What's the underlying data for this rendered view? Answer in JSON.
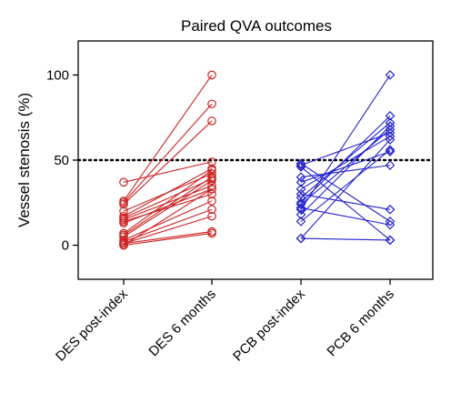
{
  "chart_data": {
    "type": "line",
    "title": "Paired QVA outcomes",
    "ylabel": "Vessel stenosis (%)",
    "xlabel": "",
    "ylim": [
      -20,
      120
    ],
    "yticks": [
      0,
      50,
      100
    ],
    "reference_line": {
      "y": 50,
      "style": "dotted"
    },
    "categories": [
      "DES post-index",
      "DES 6 months",
      "PCB post-index",
      "PCB 6 months"
    ],
    "groups": [
      {
        "name": "DES",
        "color": "#cc2222",
        "marker": "circle",
        "from_category": 0,
        "to_category": 1,
        "pairs": [
          [
            37,
            49
          ],
          [
            26,
            100
          ],
          [
            25,
            83
          ],
          [
            24,
            73
          ],
          [
            20,
            42
          ],
          [
            17,
            45
          ],
          [
            16,
            39
          ],
          [
            15,
            35
          ],
          [
            14,
            30
          ],
          [
            13,
            33
          ],
          [
            7,
            44
          ],
          [
            6,
            40
          ],
          [
            5,
            38
          ],
          [
            3,
            26
          ],
          [
            2,
            21
          ],
          [
            1,
            8
          ],
          [
            1,
            17
          ],
          [
            0,
            7
          ],
          [
            0,
            33
          ]
        ]
      },
      {
        "name": "PCB",
        "color": "#2222cc",
        "marker": "diamond",
        "from_category": 2,
        "to_category": 3,
        "pairs": [
          [
            48,
            14
          ],
          [
            47,
            66
          ],
          [
            46,
            3
          ],
          [
            40,
            47
          ],
          [
            37,
            55
          ],
          [
            33,
            64
          ],
          [
            30,
            21
          ],
          [
            28,
            72
          ],
          [
            25,
            76
          ],
          [
            24,
            68
          ],
          [
            22,
            12
          ],
          [
            21,
            100
          ],
          [
            18,
            70
          ],
          [
            14,
            56
          ],
          [
            4,
            62
          ],
          [
            4,
            3
          ]
        ]
      }
    ]
  }
}
